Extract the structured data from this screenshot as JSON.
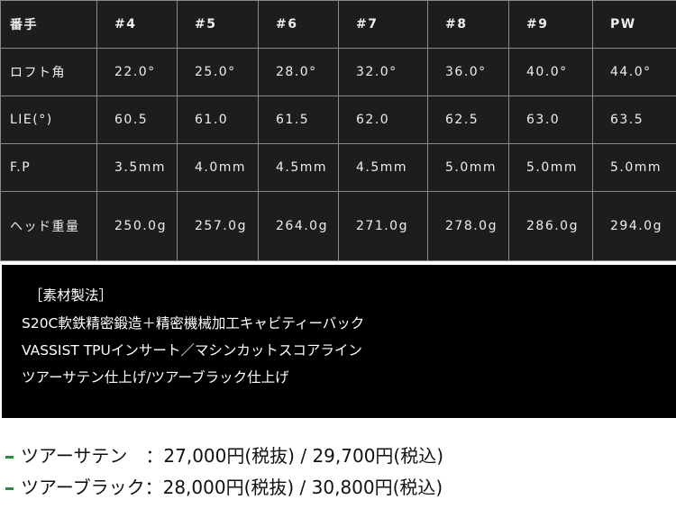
{
  "spec_table": {
    "header": [
      "番手",
      "#4",
      "#5",
      "#6",
      "#7",
      "#8",
      "#9",
      "PW"
    ],
    "rows": [
      {
        "label": "ロフト角",
        "values": [
          "22.0°",
          "25.0°",
          "28.0°",
          "32.0°",
          "36.0°",
          "40.0°",
          "44.0°"
        ]
      },
      {
        "label": "LIE(°)",
        "values": [
          "60.5",
          "61.0",
          "61.5",
          "62.0",
          "62.5",
          "63.0",
          "63.5"
        ]
      },
      {
        "label": "F.P",
        "values": [
          "3.5mm",
          "4.0mm",
          "4.5mm",
          "4.5mm",
          "5.0mm",
          "5.0mm",
          "5.0mm"
        ]
      },
      {
        "label": "ヘッド重量",
        "values": [
          "250.0g",
          "257.0g",
          "264.0g",
          "271.0g",
          "278.0g",
          "286.0g",
          "294.0g"
        ]
      }
    ]
  },
  "material": {
    "heading": "［素材製法］",
    "lines": [
      "S20C軟鉄精密鍛造＋精密機械加工キャビティーバック",
      "VASSIST TPUインサート／マシンカットスコアライン",
      "ツアーサテン仕上げ/ツアーブラック仕上げ"
    ]
  },
  "prices": [
    "ツアーサテン　：27,000円(税抜) / 29,700円(税込)",
    "ツアーブラック：28,000円(税抜) /  30,800円(税込)"
  ],
  "colors": {
    "bullet": "#2e8b3e",
    "table_bg": "#1d1d1d"
  }
}
